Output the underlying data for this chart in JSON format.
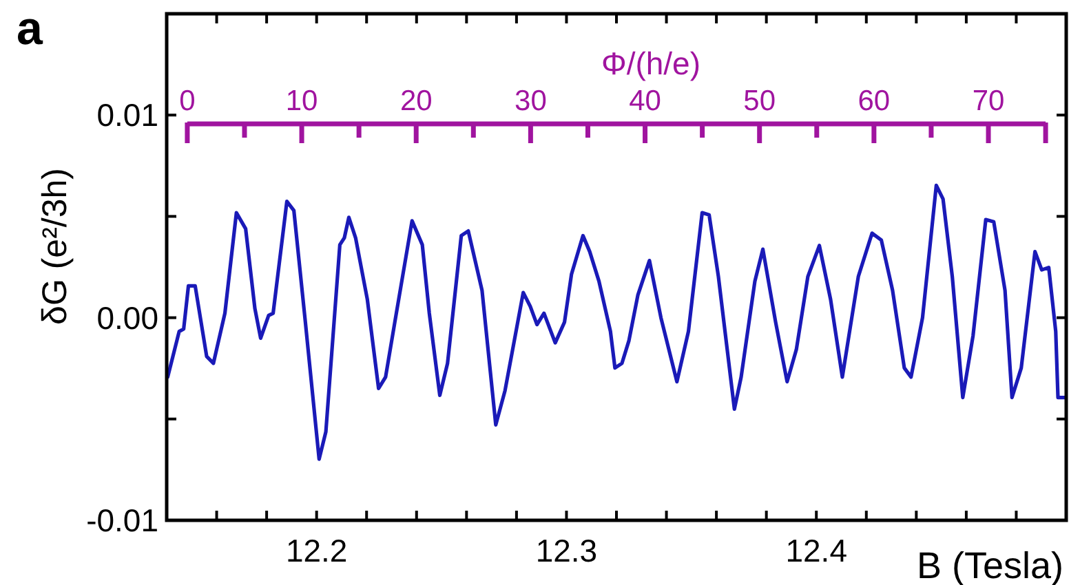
{
  "chart_data": {
    "type": "line",
    "xlabel": "B  (Tesla)",
    "ylabel": "δG  (e²/3h)",
    "x2label": "Φ/(h/e)",
    "annotations": [
      "a"
    ],
    "xlim": [
      12.14,
      12.5
    ],
    "ylim": [
      -0.01,
      0.015
    ],
    "xticks": [
      {
        "value": 12.16,
        "label": null
      },
      {
        "value": 12.18,
        "label": null
      },
      {
        "value": 12.2,
        "label": "12.2"
      },
      {
        "value": 12.22,
        "label": null
      },
      {
        "value": 12.24,
        "label": null
      },
      {
        "value": 12.26,
        "label": null
      },
      {
        "value": 12.28,
        "label": null
      },
      {
        "value": 12.3,
        "label": "12.3"
      },
      {
        "value": 12.32,
        "label": null
      },
      {
        "value": 12.34,
        "label": null
      },
      {
        "value": 12.36,
        "label": null
      },
      {
        "value": 12.38,
        "label": null
      },
      {
        "value": 12.4,
        "label": "12.4"
      },
      {
        "value": 12.42,
        "label": null
      },
      {
        "value": 12.44,
        "label": null
      },
      {
        "value": 12.46,
        "label": null
      },
      {
        "value": 12.48,
        "label": null
      }
    ],
    "yticks": [
      {
        "value": -0.01,
        "label": "-0.01"
      },
      {
        "value": -0.005,
        "label": null
      },
      {
        "value": 0,
        "label": "0.00"
      },
      {
        "value": 0.005,
        "label": null
      },
      {
        "value": 0.01,
        "label": "0.01"
      }
    ],
    "x2lim": [
      -1.8,
      76.8
    ],
    "x2ticks": [
      0,
      10,
      20,
      30,
      40,
      50,
      60,
      70
    ],
    "marker": "none",
    "line_style": "solid",
    "series": [
      {
        "color": "#1a1ab8",
        "x": [
          12.1404,
          12.145,
          12.1468,
          12.1487,
          12.1514,
          12.156,
          12.1587,
          12.1633,
          12.1679,
          12.1716,
          12.1753,
          12.1776,
          12.1808,
          12.1826,
          12.1881,
          12.1909,
          12.1955,
          12.201,
          12.2037,
          12.2093,
          12.2111,
          12.2129,
          12.2156,
          12.2203,
          12.2248,
          12.2276,
          12.2313,
          12.2382,
          12.2423,
          12.2451,
          12.2493,
          12.2524,
          12.2579,
          12.2607,
          12.2662,
          12.2717,
          12.2754,
          12.2827,
          12.2855,
          12.2882,
          12.291,
          12.2955,
          12.2992,
          12.302,
          12.3066,
          12.3093,
          12.313,
          12.3176,
          12.3194,
          12.3222,
          12.325,
          12.3286,
          12.3332,
          12.3378,
          12.3442,
          12.3488,
          12.3543,
          12.3571,
          12.3608,
          12.3672,
          12.3699,
          12.3754,
          12.3786,
          12.3837,
          12.3883,
          12.392,
          12.3966,
          12.4012,
          12.4057,
          12.4104,
          12.4168,
          12.4223,
          12.426,
          12.4305,
          12.4352,
          12.4379,
          12.4425,
          12.448,
          12.4507,
          12.4544,
          12.4586,
          12.4627,
          12.4678,
          12.471,
          12.4755,
          12.4783,
          12.482,
          12.4875,
          12.4902,
          12.493,
          12.4958,
          12.4967,
          12.4994
        ],
        "values": [
          -0.00293,
          -0.00068,
          -0.00056,
          0.00157,
          0.00157,
          -0.00191,
          -0.00225,
          0.00022,
          0.00518,
          0.00439,
          0.00045,
          -0.00101,
          0.00011,
          0.00022,
          0.00574,
          0.00529,
          -0.00022,
          -0.00698,
          -0.00563,
          0.0036,
          0.00394,
          0.00495,
          0.00394,
          0.0009,
          -0.00349,
          -0.00293,
          -0.00022,
          0.00478,
          0.0036,
          0.00022,
          -0.00383,
          -0.00225,
          0.00405,
          0.00428,
          0.00135,
          -0.00529,
          -0.0036,
          0.00124,
          0.00056,
          -0.00034,
          0.00022,
          -0.00124,
          -0.00022,
          0.00214,
          0.00405,
          0.00326,
          0.0018,
          -0.00068,
          -0.00248,
          -0.00225,
          -0.00113,
          0.00113,
          0.00282,
          0,
          -0.00316,
          -0.00068,
          0.00518,
          0.00507,
          0.00203,
          -0.00451,
          -0.00293,
          0.0018,
          0.00338,
          -0.00022,
          -0.00316,
          -0.00157,
          0.00203,
          0.00356,
          0.0009,
          -0.00293,
          0.00203,
          0.00417,
          0.00383,
          0.00135,
          -0.00248,
          -0.00293,
          0,
          0.00653,
          0.00586,
          0.00203,
          -0.00394,
          -0.0009,
          0.00484,
          0.00473,
          0.00135,
          -0.00394,
          -0.00248,
          0.00326,
          0.00236,
          0.00248,
          -0.00068,
          -0.00394,
          -0.00394
        ]
      }
    ]
  }
}
